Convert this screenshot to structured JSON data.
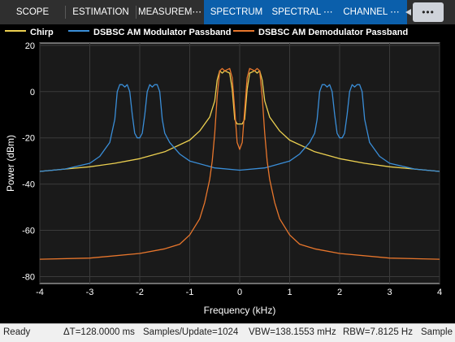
{
  "tabs": [
    {
      "label": "SCOPE",
      "active": false,
      "chevron": false
    },
    {
      "label": "ESTIMATION",
      "active": false,
      "chevron": false
    },
    {
      "label": "MEASUREM⋯",
      "active": false,
      "chevron": false
    },
    {
      "label": "SPECTRUM",
      "active": true,
      "chevron": false
    },
    {
      "label": "SPECTRAL ⋯",
      "active": true,
      "chevron": true
    },
    {
      "label": "CHANNEL ⋯",
      "active": true,
      "chevron": true
    }
  ],
  "toolbar": {
    "overflow_label": "•••"
  },
  "colors": {
    "accent": "#0b5fab",
    "background": "#000000",
    "grid": "#3a3a3a"
  },
  "status": {
    "ready": "Ready",
    "delta_t": "ΔT=128.0000 ms",
    "samples_update": "Samples/Update=1024",
    "vbw": "VBW=138.1553 mHz",
    "rbw": "RBW=7.8125 Hz",
    "sample": "Sample"
  },
  "chart_data": {
    "type": "line",
    "title": "",
    "xlabel": "Frequency (kHz)",
    "ylabel": "Power (dBm)",
    "xlim": [
      -4,
      4
    ],
    "ylim": [
      -83,
      21
    ],
    "xticks": [
      -4,
      -3,
      -2,
      -1,
      0,
      1,
      2,
      3,
      4
    ],
    "yticks": [
      20,
      0,
      -20,
      -40,
      -60,
      -80
    ],
    "grid": true,
    "legend_position": "top",
    "series": [
      {
        "name": "Chirp",
        "color": "#ecd050",
        "x": [
          -4,
          -3.5,
          -3,
          -2.5,
          -2,
          -1.5,
          -1,
          -0.8,
          -0.6,
          -0.5,
          -0.45,
          -0.4,
          -0.35,
          -0.3,
          -0.2,
          -0.15,
          -0.1,
          -0.05,
          0,
          0.05,
          0.1,
          0.15,
          0.2,
          0.3,
          0.35,
          0.4,
          0.45,
          0.5,
          0.6,
          0.8,
          1,
          1.5,
          2,
          2.5,
          3,
          3.5,
          4
        ],
        "y": [
          -34.5,
          -33.5,
          -32.5,
          -31,
          -29,
          -26,
          -21,
          -17,
          -11,
          -4,
          5,
          9,
          8,
          9,
          8,
          1,
          -12,
          -14,
          -14,
          -14,
          -12,
          1,
          8,
          9,
          8,
          9,
          5,
          -4,
          -11,
          -17,
          -21,
          -26,
          -29,
          -31,
          -32.5,
          -33.5,
          -34.5
        ]
      },
      {
        "name": "DSBSC AM Modulator Passband",
        "color": "#3a8ed8",
        "x": [
          -4,
          -3.5,
          -3,
          -2.8,
          -2.6,
          -2.5,
          -2.45,
          -2.4,
          -2.35,
          -2.3,
          -2.25,
          -2.2,
          -2.15,
          -2.1,
          -2.05,
          -2,
          -1.95,
          -1.9,
          -1.85,
          -1.8,
          -1.75,
          -1.7,
          -1.65,
          -1.6,
          -1.55,
          -1.5,
          -1.4,
          -1.2,
          -1,
          -0.5,
          0,
          0.5,
          1,
          1.2,
          1.4,
          1.5,
          1.55,
          1.6,
          1.65,
          1.7,
          1.75,
          1.8,
          1.85,
          1.9,
          1.95,
          2,
          2.05,
          2.1,
          2.15,
          2.2,
          2.25,
          2.3,
          2.35,
          2.4,
          2.45,
          2.5,
          2.6,
          2.8,
          3,
          3.5,
          4
        ],
        "y": [
          -34.5,
          -33.5,
          -31,
          -28,
          -22,
          -12,
          0,
          3,
          3,
          2,
          3,
          0,
          -10,
          -18,
          -20,
          -20,
          -18,
          -10,
          0,
          3,
          2,
          3,
          3,
          0,
          -12,
          -18,
          -22,
          -27,
          -30,
          -33,
          -34,
          -33,
          -30,
          -27,
          -22,
          -18,
          -12,
          0,
          3,
          3,
          2,
          3,
          0,
          -10,
          -18,
          -20,
          -20,
          -18,
          -10,
          0,
          3,
          2,
          3,
          3,
          0,
          -12,
          -22,
          -28,
          -31,
          -33.5,
          -34.5
        ]
      },
      {
        "name": "DSBSC AM Demodulator Passband",
        "color": "#e8762c",
        "x": [
          -4,
          -3,
          -2,
          -1.5,
          -1.2,
          -1,
          -0.8,
          -0.7,
          -0.6,
          -0.55,
          -0.5,
          -0.45,
          -0.4,
          -0.35,
          -0.3,
          -0.2,
          -0.15,
          -0.1,
          -0.05,
          0,
          0.05,
          0.1,
          0.15,
          0.2,
          0.3,
          0.35,
          0.4,
          0.45,
          0.5,
          0.55,
          0.6,
          0.7,
          0.8,
          1,
          1.2,
          1.5,
          2,
          3,
          4
        ],
        "y": [
          -72.5,
          -72,
          -70,
          -68,
          -66,
          -62,
          -55,
          -48,
          -38,
          -30,
          -18,
          -2,
          9,
          10,
          9,
          10,
          6,
          -8,
          -22,
          -25,
          -22,
          -8,
          6,
          10,
          9,
          10,
          9,
          -2,
          -18,
          -30,
          -38,
          -48,
          -55,
          -62,
          -66,
          -68,
          -70,
          -72,
          -72.5
        ]
      }
    ]
  }
}
